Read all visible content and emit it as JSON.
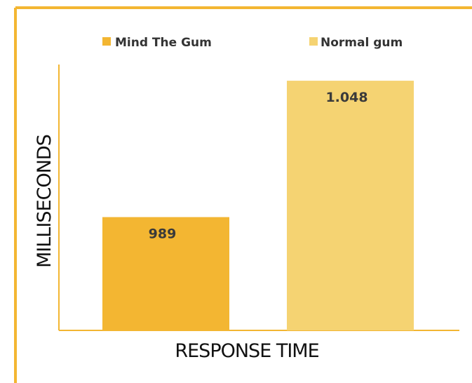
{
  "chart_data": {
    "type": "bar",
    "categories": [
      "Mind The Gum",
      "Normal gum"
    ],
    "series": [
      {
        "name": "Mind The Gum",
        "values": [
          989,
          null
        ],
        "color": "#F3B632",
        "label": "989"
      },
      {
        "name": "Normal gum",
        "values": [
          null,
          1048
        ],
        "color": "#F5D372",
        "label": "1.048"
      }
    ],
    "values": [
      989,
      1048
    ],
    "value_labels": [
      "989",
      "1.048"
    ],
    "xlabel": "RESPONSE TIME",
    "ylabel": "MILLISECONDS",
    "ylim": [
      940,
      1055
    ],
    "legend_position": "top",
    "grid": false
  },
  "colors": {
    "border": "#F3B632",
    "axis": "#F3B632"
  }
}
